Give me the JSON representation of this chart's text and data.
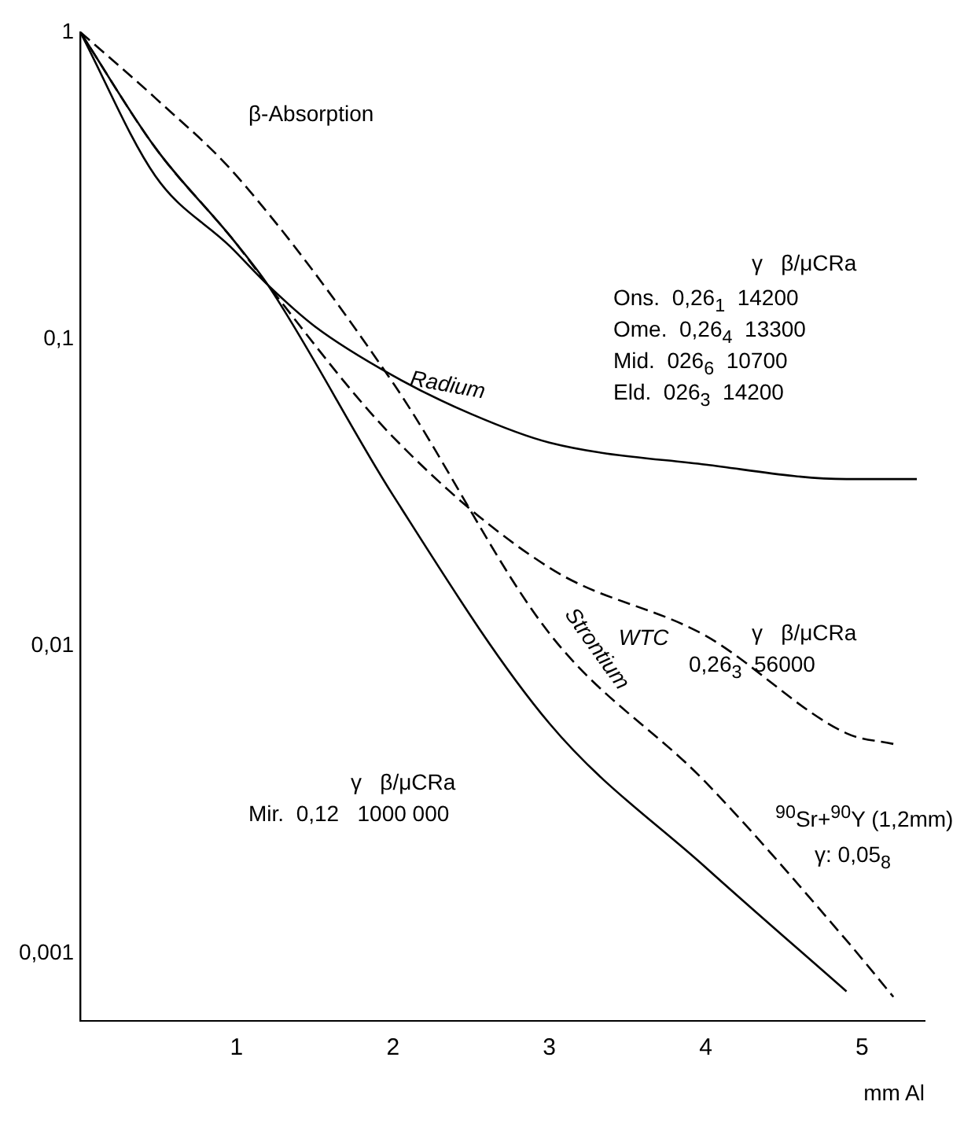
{
  "chart_data": {
    "type": "line",
    "xlabel": "mm Al",
    "log": "y",
    "grid": false,
    "legend": false,
    "marker": "none",
    "xlim": [
      0,
      5.4
    ],
    "xticks": [
      1,
      2,
      3,
      4,
      5
    ],
    "ylim": [
      0.0006,
      1
    ],
    "yticks": [
      {
        "value": 0.001,
        "label": "0,001"
      },
      {
        "value": 0.01,
        "label": "0,01"
      },
      {
        "value": 0.1,
        "label": "0,1"
      },
      {
        "value": 1,
        "label": "1"
      }
    ],
    "series": [
      {
        "name": "Radium",
        "color": "#000000",
        "line_style": "solid",
        "x": [
          0,
          0.48,
          0.96,
          1.2,
          1.5,
          2,
          2.5,
          3,
          4,
          4.9,
          5.35
        ],
        "values": [
          1,
          0.34,
          0.2,
          0.15,
          0.11,
          0.076,
          0.057,
          0.046,
          0.039,
          0.035,
          0.035
        ]
      },
      {
        "color": "#000000",
        "line_style": "solid",
        "x": [
          0,
          0.48,
          0.98,
          1.2,
          2,
          3,
          4,
          4.9
        ],
        "values": [
          1,
          0.42,
          0.21,
          0.15,
          0.031,
          0.0056,
          0.0019,
          0.00075
        ]
      },
      {
        "name": "WTC",
        "color": "#000000",
        "line_style": "dashed",
        "x": [
          0,
          0.48,
          0.98,
          1.2,
          2,
          3,
          4,
          4.9,
          5.2
        ],
        "values": [
          1,
          0.42,
          0.21,
          0.15,
          0.048,
          0.018,
          0.0108,
          0.0052,
          0.0048
        ]
      },
      {
        "name": "Strontium",
        "color": "#000000",
        "line_style": "dashed",
        "x": [
          0,
          0.48,
          1,
          2,
          3,
          4,
          4.9,
          5.2
        ],
        "values": [
          1,
          0.61,
          0.34,
          0.072,
          0.011,
          0.0036,
          0.0011,
          0.00072
        ]
      }
    ],
    "annotations": [
      "β-Absorption",
      "γ   β/μCRa",
      "Ons.  0,26$_{1}$  14200",
      "Ome.  0,26$_{4}$  13300",
      "Mid.  026$_{6}$  10700",
      "Eld.  026$_{3}$  14200",
      "γ   β/μCRa",
      "0,26$_{3}$  56000",
      "γ   β/μCRa",
      "Mir.  0,12   1000 000",
      "$^{90}$Sr+$^{90}$Y (1,2mm)",
      "γ: 0,05$_{8}$"
    ]
  }
}
